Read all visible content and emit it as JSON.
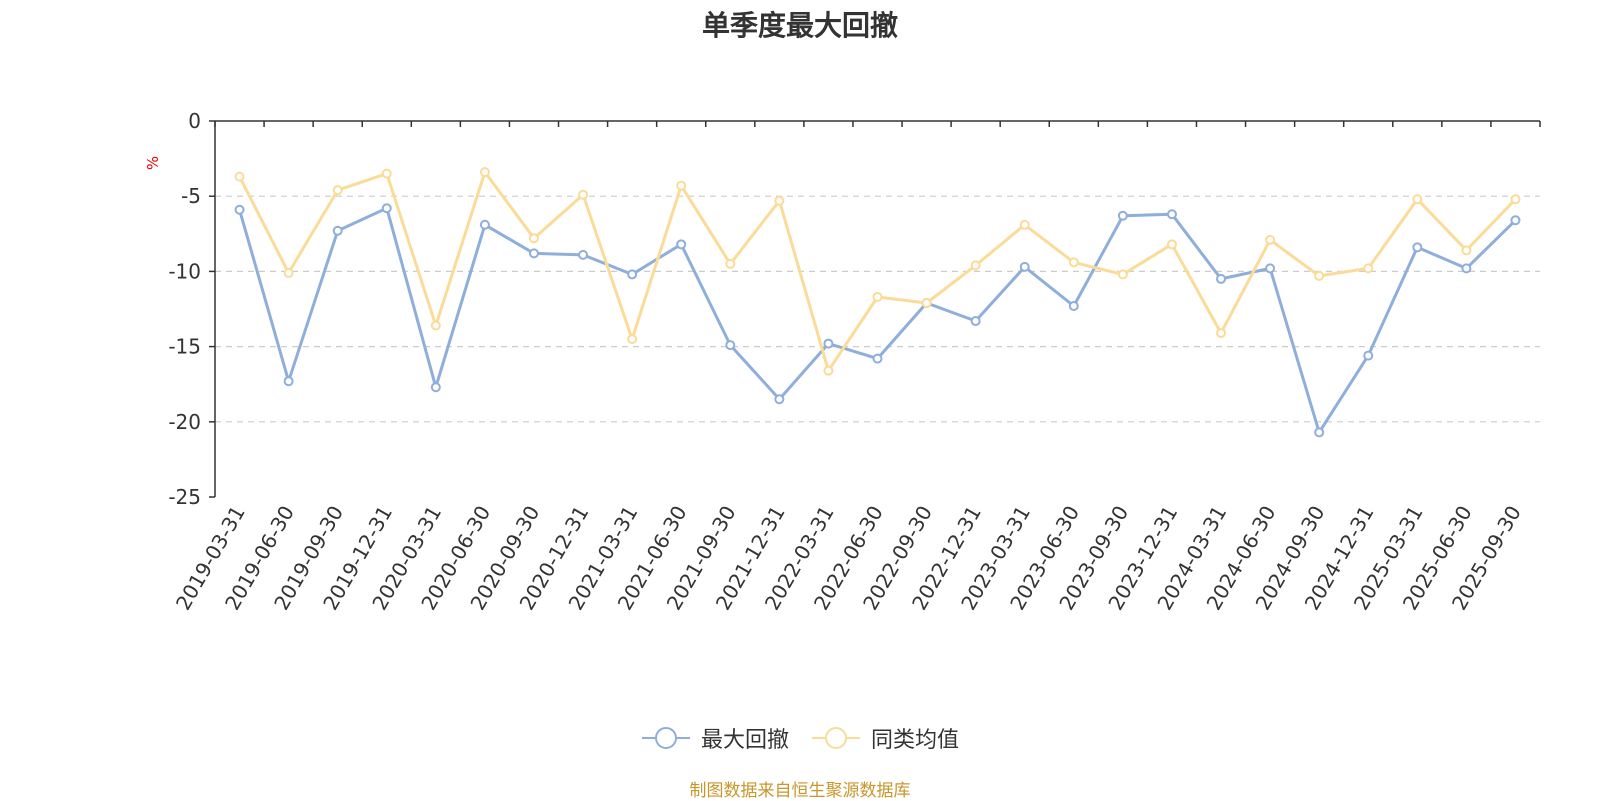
{
  "chart_data": {
    "type": "line",
    "title": "单季度最大回撤",
    "ylabel": "%",
    "ylim": [
      -25,
      0
    ],
    "yticks": [
      0,
      -5,
      -10,
      -15,
      -20,
      -25
    ],
    "grid": true,
    "legend_position": "bottom-center",
    "categories": [
      "2019-03-31",
      "2019-06-30",
      "2019-09-30",
      "2019-12-31",
      "2020-03-31",
      "2020-06-30",
      "2020-09-30",
      "2020-12-31",
      "2021-03-31",
      "2021-06-30",
      "2021-09-30",
      "2021-12-31",
      "2022-03-31",
      "2022-06-30",
      "2022-09-30",
      "2022-12-31",
      "2023-03-31",
      "2023-06-30",
      "2023-09-30",
      "2023-12-31",
      "2024-03-31",
      "2024-06-30",
      "2024-09-30",
      "2024-12-31",
      "2025-03-31",
      "2025-06-30",
      "2025-09-30"
    ],
    "series": [
      {
        "name": "最大回撤",
        "color": "#8eaedb",
        "values": [
          -5.9,
          -17.3,
          -7.3,
          -5.8,
          -17.7,
          -6.9,
          -8.8,
          -8.9,
          -10.2,
          -8.2,
          -14.9,
          -18.5,
          -14.8,
          -15.8,
          -12.1,
          -13.3,
          -9.7,
          -12.3,
          -6.3,
          -6.2,
          -10.5,
          -9.8,
          -20.7,
          -15.6,
          -8.4,
          -9.8,
          -6.6
        ]
      },
      {
        "name": "同类均值",
        "color": "#fbdb98",
        "values": [
          -3.7,
          -10.1,
          -4.6,
          -3.5,
          -13.6,
          -3.4,
          -7.8,
          -4.9,
          -14.5,
          -4.3,
          -9.5,
          -5.3,
          -16.6,
          -11.7,
          -12.1,
          -9.6,
          -6.9,
          -9.4,
          -10.2,
          -8.2,
          -14.1,
          -7.9,
          -10.3,
          -9.8,
          -5.2,
          -8.6,
          -5.2
        ]
      }
    ],
    "source_note": "制图数据来自恒生聚源数据库",
    "source_color": "#c8962a",
    "axis_color": "#333333",
    "grid_color": "#cccccc",
    "ylabel_color": "#ee0000"
  }
}
